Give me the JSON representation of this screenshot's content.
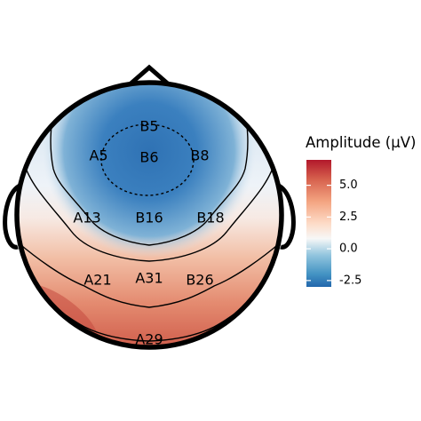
{
  "chart_data": {
    "type": "heatmap",
    "subtype": "scalp-topography",
    "title": "",
    "legend": {
      "title": "Amplitude (µV)",
      "placement": "right",
      "ticks": [
        {
          "value": 5.0,
          "label": "5.0"
        },
        {
          "value": 2.5,
          "label": "2.5"
        },
        {
          "value": 0.0,
          "label": "0.0"
        },
        {
          "value": -2.5,
          "label": "-2.5"
        }
      ],
      "range": [
        -3.0,
        7.0
      ],
      "colormap": [
        "#2166ac",
        "#4393c3",
        "#92c5de",
        "#f7f7f7",
        "#fddbc7",
        "#f4a582",
        "#d6604d",
        "#b2182b"
      ]
    },
    "electrodes": [
      {
        "name": "B5",
        "amplitude": -2.4
      },
      {
        "name": "A5",
        "amplitude": -2.0
      },
      {
        "name": "B6",
        "amplitude": -3.0
      },
      {
        "name": "B8",
        "amplitude": -2.0
      },
      {
        "name": "A13",
        "amplitude": -0.2
      },
      {
        "name": "B16",
        "amplitude": -1.2
      },
      {
        "name": "B18",
        "amplitude": -0.2
      },
      {
        "name": "A21",
        "amplitude": 2.6
      },
      {
        "name": "A31",
        "amplitude": 2.0
      },
      {
        "name": "B26",
        "amplitude": 2.6
      },
      {
        "name": "A29",
        "amplitude": 5.0
      }
    ],
    "contour_levels": [
      -2.5,
      0.0,
      2.5,
      5.0
    ],
    "grid": false
  }
}
